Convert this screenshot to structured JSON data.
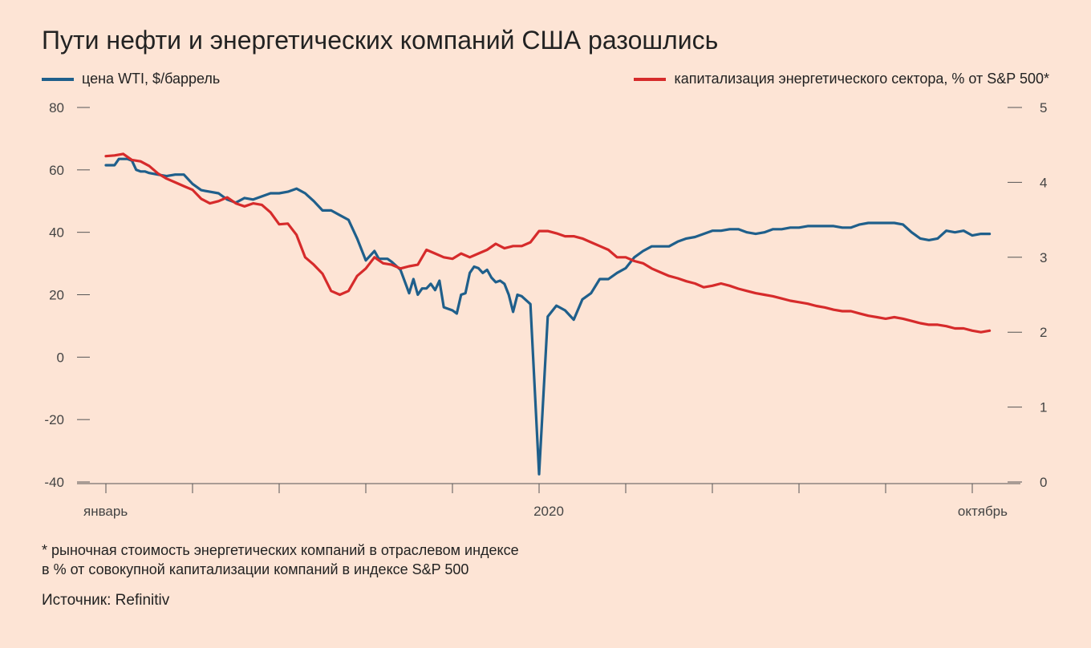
{
  "title": "Пути нефти и энергетических компаний США разошлись",
  "legend": {
    "left_label": "цена WTI, $/баррель",
    "right_label": "капитализация энергетического сектора, % от S&P 500*"
  },
  "colors": {
    "background": "#fde4d5",
    "wti": "#1f5f8b",
    "energy": "#d62b2b",
    "axis": "#555555"
  },
  "footnote": {
    "line1": "* рыночная стоимость энергетических компаний в отраслевом индексе",
    "line2": "в % от совокупной капитализации компаний в индексе S&P 500"
  },
  "source": "Источник: Refinitiv",
  "chart_data": {
    "type": "line",
    "grid": false,
    "x_range": [
      0,
      100
    ],
    "x_tick_labels": [
      {
        "x": 0,
        "label": "январь"
      },
      {
        "x": 50,
        "label": "2020"
      },
      {
        "x": 100,
        "label": "октябрь"
      }
    ],
    "x_minor_ticks": [
      0,
      10,
      20,
      30,
      40,
      50,
      60,
      70,
      80,
      90,
      100
    ],
    "y_left": {
      "range": [
        -40,
        80
      ],
      "ticks": [
        80,
        60,
        40,
        20,
        0,
        -20,
        -40
      ]
    },
    "y_right": {
      "range": [
        0,
        5
      ],
      "ticks": [
        5,
        4,
        3,
        2,
        1,
        0
      ]
    },
    "series": [
      {
        "name": "цена WTI, $/баррель",
        "axis": "left",
        "color": "#1f5f8b",
        "x": [
          0,
          0.5,
          1.0,
          1.5,
          2.0,
          2.5,
          3.0,
          3.5,
          4.0,
          4.5,
          5.0,
          6.0,
          7.0,
          8.0,
          9.0,
          10.0,
          11.0,
          12.0,
          13.0,
          14.0,
          15.0,
          16.0,
          17.0,
          18.0,
          19.0,
          20.0,
          21.0,
          22.0,
          23.0,
          24.0,
          25.0,
          26.0,
          27.0,
          28.0,
          29.0,
          30.0,
          31.0,
          31.5,
          32.0,
          32.5,
          33.0,
          34.0,
          35.0,
          35.5,
          36.0,
          36.5,
          37.0,
          37.5,
          38.0,
          38.5,
          39.0,
          40.0,
          40.5,
          41.0,
          41.5,
          42.0,
          42.5,
          43.0,
          43.5,
          44.0,
          44.5,
          45.0,
          45.5,
          46.0,
          46.5,
          47.0,
          47.5,
          48.0,
          49.0,
          50.0,
          51.0,
          52.0,
          53.0,
          54.0,
          55.0,
          56.0,
          57.0,
          58.0,
          59.0,
          60.0,
          61.0,
          62.0,
          63.0,
          64.0,
          65.0,
          66.0,
          67.0,
          68.0,
          69.0,
          70.0,
          71.0,
          72.0,
          73.0,
          74.0,
          75.0,
          76.0,
          77.0,
          78.0,
          79.0,
          80.0,
          81.0,
          82.0,
          83.0,
          84.0,
          85.0,
          86.0,
          87.0,
          88.0,
          89.0,
          90.0,
          91.0,
          92.0,
          93.0,
          94.0,
          95.0,
          96.0,
          97.0,
          98.0,
          99.0,
          100.0,
          101.0,
          102.0
        ],
        "values": [
          61.5,
          61.5,
          61.5,
          63.5,
          63.5,
          63.5,
          63.0,
          60.0,
          59.5,
          59.5,
          59.0,
          58.5,
          58.0,
          58.5,
          58.5,
          55.5,
          53.5,
          53.0,
          52.5,
          50.5,
          49.5,
          51.0,
          50.5,
          51.5,
          52.5,
          52.5,
          53.0,
          54.0,
          52.5,
          50.0,
          47.0,
          47.0,
          45.5,
          44.0,
          38.0,
          31.0,
          34.0,
          31.5,
          31.5,
          31.5,
          30.5,
          28.0,
          20.5,
          25.0,
          20.0,
          22.0,
          22.0,
          23.5,
          21.5,
          24.5,
          16.0,
          15.0,
          14.0,
          20.0,
          20.5,
          27.0,
          29.0,
          28.5,
          27.0,
          28.0,
          25.5,
          24.0,
          24.5,
          23.5,
          20.0,
          14.5,
          20.0,
          19.5,
          17.0,
          -37.5,
          13.0,
          16.5,
          15.0,
          12.0,
          18.5,
          20.5,
          25.0,
          25.0,
          27.0,
          28.5,
          32.0,
          34.0,
          35.5,
          35.5,
          35.5,
          37.0,
          38.0,
          38.5,
          39.5,
          40.5,
          40.5,
          41.0,
          41.0,
          40.0,
          39.5,
          40.0,
          41.0,
          41.0,
          41.5,
          41.5,
          42.0,
          42.0,
          42.0,
          42.0,
          41.5,
          41.5,
          42.5,
          43.0,
          43.0,
          43.0,
          43.0,
          42.5,
          40.0,
          38.0,
          37.5,
          38.0,
          40.5,
          40.0,
          40.5,
          39.0,
          39.5,
          39.5
        ]
      },
      {
        "name": "капитализация энергетического сектора, % от S&P 500*",
        "axis": "right",
        "color": "#d62b2b",
        "x": [
          0,
          1.0,
          2.0,
          3.0,
          4.0,
          5.0,
          6.0,
          7.0,
          8.0,
          9.0,
          10.0,
          11.0,
          12.0,
          13.0,
          14.0,
          15.0,
          16.0,
          17.0,
          18.0,
          19.0,
          20.0,
          21.0,
          22.0,
          23.0,
          24.0,
          25.0,
          26.0,
          27.0,
          28.0,
          29.0,
          30.0,
          31.0,
          32.0,
          33.0,
          34.0,
          35.0,
          36.0,
          37.0,
          38.0,
          39.0,
          40.0,
          41.0,
          42.0,
          43.0,
          44.0,
          45.0,
          46.0,
          47.0,
          48.0,
          49.0,
          50.0,
          51.0,
          52.0,
          53.0,
          54.0,
          55.0,
          56.0,
          57.0,
          58.0,
          59.0,
          60.0,
          61.0,
          62.0,
          63.0,
          64.0,
          65.0,
          66.0,
          67.0,
          68.0,
          69.0,
          70.0,
          71.0,
          72.0,
          73.0,
          74.0,
          75.0,
          76.0,
          77.0,
          78.0,
          79.0,
          80.0,
          81.0,
          82.0,
          83.0,
          84.0,
          85.0,
          86.0,
          87.0,
          88.0,
          89.0,
          90.0,
          91.0,
          92.0,
          93.0,
          94.0,
          95.0,
          96.0,
          97.0,
          98.0,
          99.0,
          100.0,
          101.0,
          102.0
        ],
        "values": [
          4.35,
          4.36,
          4.38,
          4.3,
          4.28,
          4.22,
          4.12,
          4.05,
          4.0,
          3.95,
          3.9,
          3.78,
          3.72,
          3.75,
          3.8,
          3.72,
          3.68,
          3.72,
          3.7,
          3.6,
          3.44,
          3.45,
          3.3,
          3.0,
          2.9,
          2.78,
          2.55,
          2.5,
          2.55,
          2.75,
          2.85,
          3.0,
          2.92,
          2.9,
          2.85,
          2.88,
          2.9,
          3.1,
          3.05,
          3.0,
          2.98,
          3.05,
          3.0,
          3.05,
          3.1,
          3.18,
          3.12,
          3.15,
          3.15,
          3.2,
          3.35,
          3.35,
          3.32,
          3.28,
          3.28,
          3.25,
          3.2,
          3.15,
          3.1,
          3.0,
          3.0,
          2.95,
          2.92,
          2.85,
          2.8,
          2.75,
          2.72,
          2.68,
          2.65,
          2.6,
          2.62,
          2.65,
          2.62,
          2.58,
          2.55,
          2.52,
          2.5,
          2.48,
          2.45,
          2.42,
          2.4,
          2.38,
          2.35,
          2.33,
          2.3,
          2.28,
          2.28,
          2.25,
          2.22,
          2.2,
          2.18,
          2.2,
          2.18,
          2.15,
          2.12,
          2.1,
          2.1,
          2.08,
          2.05,
          2.05,
          2.02,
          2.0,
          2.02
        ]
      }
    ]
  }
}
